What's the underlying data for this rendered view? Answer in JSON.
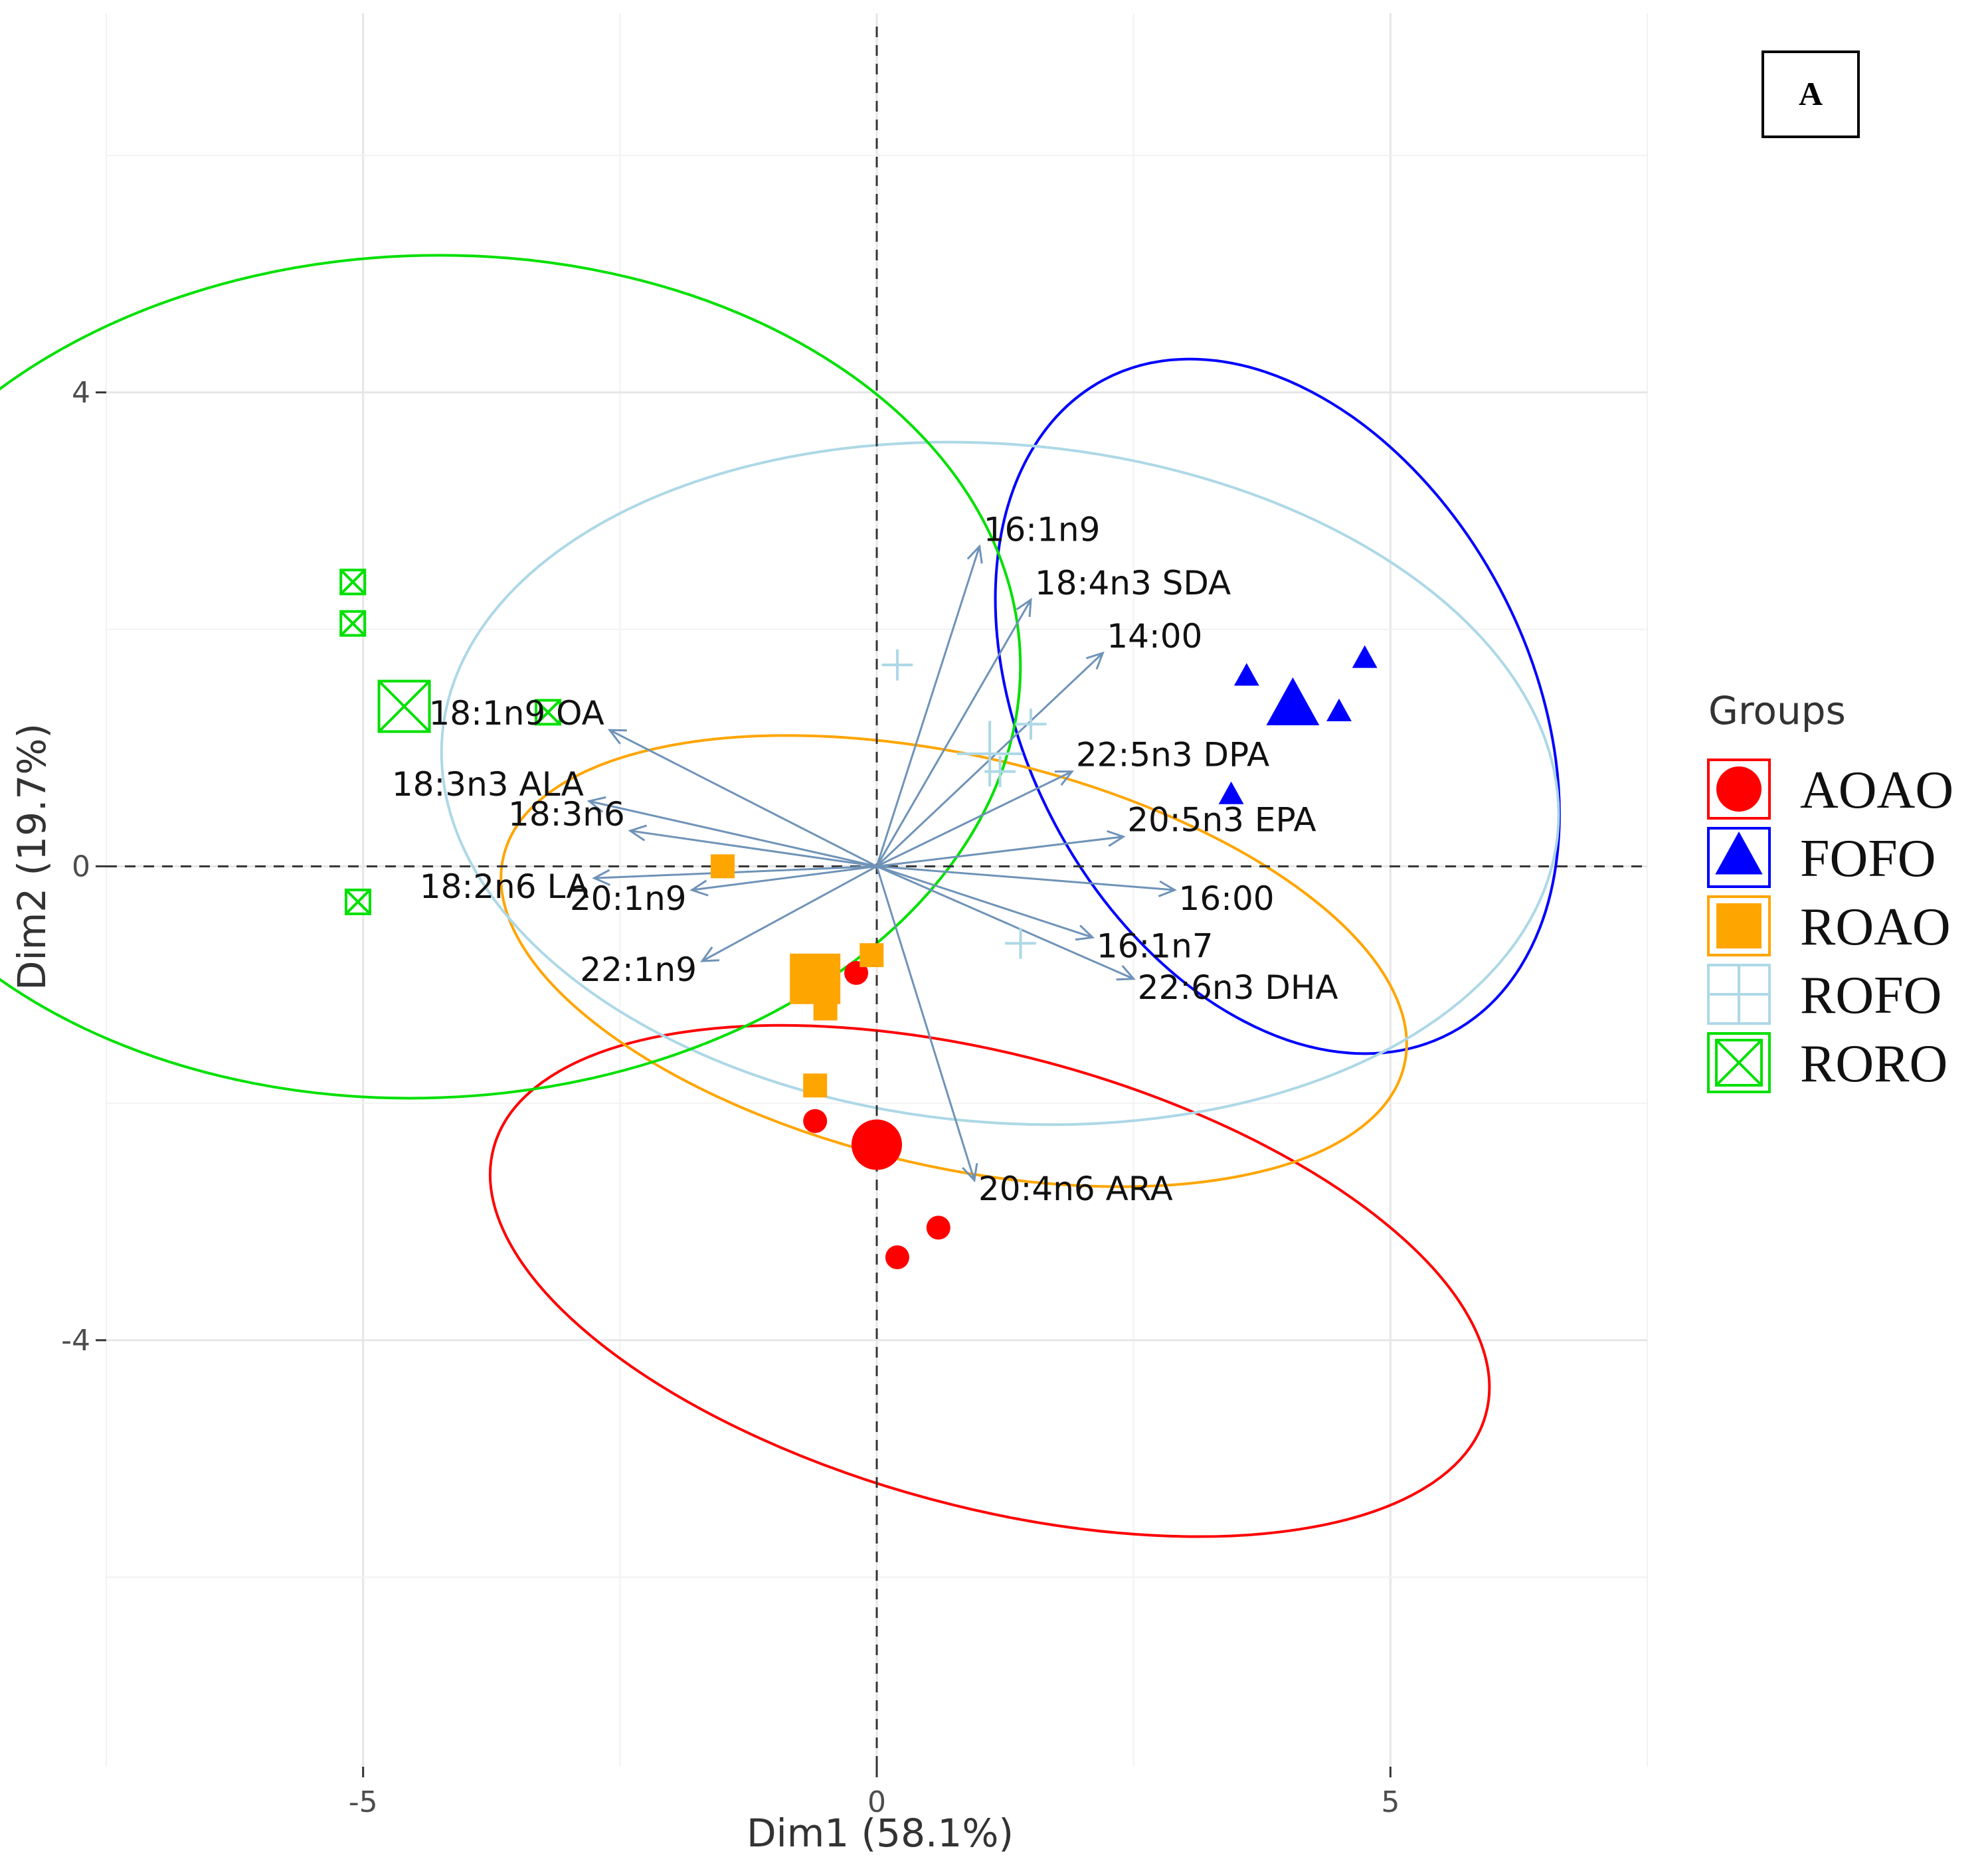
{
  "chart_data": {
    "type": "scatter",
    "panel_label": "A",
    "xlabel": "Dim1 (58.1%)",
    "ylabel": "Dim2 (19.7%)",
    "xlim": [
      -7.5,
      7.5
    ],
    "ylim": [
      -7.6,
      7.2
    ],
    "x_ticks": [
      {
        "v": -5,
        "label": "-5"
      },
      {
        "v": 0,
        "label": "0"
      },
      {
        "v": 5,
        "label": "5"
      }
    ],
    "y_ticks": [
      {
        "v": -4,
        "label": "-4"
      },
      {
        "v": 0,
        "label": "0"
      },
      {
        "v": 4,
        "label": "4"
      }
    ],
    "grid": true,
    "legend": {
      "title": "Groups",
      "position": "right"
    },
    "groups": [
      {
        "name": "AOAO",
        "color": "#ff0000",
        "marker": "circle",
        "ellipse": {
          "cx": 1.1,
          "cy": -3.5,
          "rx": 2.2,
          "ry": 5.0,
          "angle": 75
        },
        "points": [
          [
            -0.2,
            -0.9
          ],
          [
            -0.6,
            -2.15
          ],
          [
            0.2,
            -3.3
          ],
          [
            0.6,
            -3.05
          ]
        ],
        "centroid": [
          0.0,
          -2.35
        ]
      },
      {
        "name": "FOFO",
        "color": "#0000ff",
        "marker": "triangle",
        "ellipse": {
          "cx": 3.9,
          "cy": 1.35,
          "rx": 2.45,
          "ry": 3.6,
          "angle": 28
        },
        "points": [
          [
            3.6,
            1.6
          ],
          [
            4.5,
            1.3
          ],
          [
            4.75,
            1.75
          ],
          [
            3.45,
            0.6
          ]
        ],
        "centroid": [
          4.05,
          1.35
        ]
      },
      {
        "name": "ROAO",
        "color": "#ffa500",
        "marker": "square",
        "ellipse": {
          "cx": 0.75,
          "cy": -0.8,
          "rx": 2.0,
          "ry": 4.5,
          "angle": 77
        },
        "points": [
          [
            -1.5,
            0.0
          ],
          [
            -0.05,
            -0.75
          ],
          [
            -0.5,
            -1.2
          ],
          [
            -0.6,
            -1.85
          ]
        ],
        "centroid": [
          -0.6,
          -0.95
        ]
      },
      {
        "name": "ROFO",
        "color": "#add8e6",
        "marker": "plus",
        "ellipse": {
          "cx": 1.2,
          "cy": 0.7,
          "rx": 3.3,
          "ry": 5.45,
          "angle": 85
        },
        "points": [
          [
            0.2,
            1.7
          ],
          [
            1.2,
            0.8
          ],
          [
            1.5,
            1.2
          ],
          [
            1.4,
            -0.65
          ]
        ],
        "centroid": [
          1.1,
          0.95
        ]
      },
      {
        "name": "RORO",
        "color": "#00e000",
        "marker": "square-cross",
        "ellipse": {
          "cx": -4.4,
          "cy": 1.6,
          "rx": 4.1,
          "ry": 5.8,
          "angle": 92
        },
        "points": [
          [
            -5.1,
            2.4
          ],
          [
            -5.1,
            2.05
          ],
          [
            -3.2,
            1.3
          ],
          [
            -5.05,
            -0.3
          ]
        ],
        "centroid": [
          -4.6,
          1.35
        ]
      }
    ],
    "variables": [
      {
        "name": "16:1n9",
        "x": 1.0,
        "y": 2.7
      },
      {
        "name": "18:4n3 SDA",
        "x": 1.5,
        "y": 2.25
      },
      {
        "name": "14:00",
        "x": 2.2,
        "y": 1.8
      },
      {
        "name": "18:1n9 OA",
        "x": -2.6,
        "y": 1.15
      },
      {
        "name": "18:3n3 ALA",
        "x": -2.8,
        "y": 0.55
      },
      {
        "name": "18:3n6",
        "x": -2.4,
        "y": 0.3
      },
      {
        "name": "22:5n3 DPA",
        "x": 1.9,
        "y": 0.8
      },
      {
        "name": "20:5n3 EPA",
        "x": 2.4,
        "y": 0.25
      },
      {
        "name": "18:2n6 LA",
        "x": -2.75,
        "y": -0.1
      },
      {
        "name": "20:1n9",
        "x": -1.8,
        "y": -0.2
      },
      {
        "name": "16:00",
        "x": 2.9,
        "y": -0.2
      },
      {
        "name": "16:1n7",
        "x": 2.1,
        "y": -0.6
      },
      {
        "name": "22:1n9",
        "x": -1.7,
        "y": -0.8
      },
      {
        "name": "22:6n3 DHA",
        "x": 2.5,
        "y": -0.95
      },
      {
        "name": "20:4n6 ARA",
        "x": 0.95,
        "y": -2.65
      }
    ]
  }
}
